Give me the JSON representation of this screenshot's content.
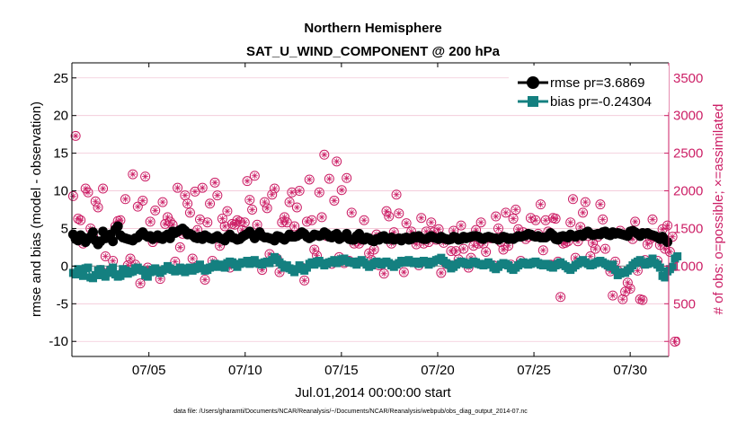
{
  "chart_data": {
    "type": "line",
    "title": "Northern Hemisphere",
    "subtitle": "SAT_U_WIND_COMPONENT @ 200 hPa",
    "xlabel": "Jul.01,2014 00:00:00 start",
    "ylabel_left": "rmse and bias (model - observation)",
    "ylabel_right": "# of obs: o=possible; ×=assimilated",
    "footer": "data file: /Users/gharamti/Documents/NCAR/Reanalysis/~/Documents/NCAR/Reanalysis/webpub/obs_diag_output_2014-07.nc",
    "xlim": [
      1,
      32
    ],
    "ylim_left": [
      -12,
      27
    ],
    "ylim_right": [
      -200,
      3700
    ],
    "y_ticks_left": [
      -10,
      -5,
      0,
      5,
      10,
      15,
      20,
      25
    ],
    "y_ticks_right": [
      0,
      500,
      1000,
      1500,
      2000,
      2500,
      3000,
      3500
    ],
    "x_ticks": [
      5,
      10,
      15,
      20,
      25,
      30
    ],
    "x_tick_labels": [
      "07/05",
      "07/10",
      "07/15",
      "07/20",
      "07/25",
      "07/30"
    ],
    "colors": {
      "rmse": "#000000",
      "bias": "#148080",
      "obs": "#cc1f66",
      "zero_line": "#9a9a9a"
    },
    "series": [
      {
        "name": "rmse",
        "legend": "rmse pr=3.6869",
        "values": [
          4.2,
          3.6,
          3.4,
          4.1,
          3.8,
          3.2,
          3.6,
          3.9,
          4.5,
          3.4,
          2.9,
          3.3,
          4.6,
          3.7,
          3.9,
          4.2,
          3.3,
          4.9,
          5.3,
          4.1,
          3.8,
          3.7,
          3.6,
          3.5,
          3.4,
          3.7,
          3.8,
          4.2,
          4.5,
          4.1,
          3.9,
          4.0,
          3.6,
          3.8,
          4.1,
          3.7,
          3.6,
          4.0,
          4.2,
          3.7,
          4.6,
          4.4,
          4.6,
          4.8,
          5.0,
          4.7,
          4.2,
          4.3,
          4.1,
          3.8,
          3.7,
          3.9,
          3.6,
          4.1,
          3.9,
          3.7,
          3.6,
          3.8,
          4.0,
          3.7,
          3.6,
          3.4,
          3.9,
          4.2,
          3.8,
          3.7,
          3.5,
          3.6,
          3.9,
          4.1,
          4.3,
          4.6,
          4.2,
          3.7,
          4.1,
          4.5,
          4.0,
          3.8,
          3.8,
          3.7,
          3.6,
          3.4,
          4.0,
          3.9,
          3.7,
          3.5,
          3.8,
          4.2,
          3.9,
          3.9,
          4.0,
          4.2,
          4.5,
          4.3,
          3.9,
          3.7,
          3.9,
          4.2,
          4.1,
          4.0,
          4.1,
          4.5,
          4.3,
          3.9,
          3.8,
          4.1,
          4.3,
          3.6,
          3.8,
          3.9,
          4.3,
          3.6,
          3.5,
          3.5,
          4.0,
          4.3,
          3.6,
          3.5,
          3.8,
          3.7,
          3.4,
          3.3,
          3.6,
          3.5,
          3.9,
          4.0,
          3.6,
          3.6,
          3.8,
          3.5,
          3.6,
          3.7,
          3.4,
          3.7,
          3.8,
          3.5,
          3.6,
          3.9,
          3.8,
          4.0,
          3.7,
          3.6,
          3.6,
          3.8,
          4.0,
          3.8,
          3.7,
          3.6,
          3.9,
          3.7,
          3.6,
          3.5,
          3.6,
          3.9,
          3.8,
          3.5,
          3.6,
          3.9,
          3.7,
          3.8,
          3.9,
          4.0,
          4.0,
          3.9,
          3.7,
          3.6,
          3.8,
          3.9,
          3.8,
          3.7,
          3.7,
          3.5,
          3.7,
          3.9,
          3.8,
          3.6,
          3.7,
          3.6,
          3.8,
          4.0,
          3.9,
          4.0,
          4.1,
          4.3,
          4.2,
          4.0,
          3.9,
          4.0,
          3.8,
          3.8,
          3.8,
          4.0,
          4.4,
          4.1,
          3.6,
          3.5,
          3.9,
          4.0,
          3.9,
          3.8,
          4.2,
          4.0,
          3.9,
          4.1,
          4.2,
          4.0,
          4.4,
          4.6,
          4.3,
          4.1,
          4.2,
          4.3,
          4.2,
          4.5,
          4.6,
          4.2,
          4.1,
          4.5,
          4.3,
          4.4,
          4.3,
          4.2,
          4.1,
          4.0,
          4.6,
          4.7,
          4.5,
          4.3,
          4.0,
          4.4,
          4.3,
          4.4,
          4.2,
          4.1,
          4.0,
          3.8,
          3.6,
          3.9,
          3.5,
          3.2
        ]
      },
      {
        "name": "bias",
        "legend": "bias pr=-0.24304",
        "values": [
          -0.9,
          -1.1,
          -0.4,
          -0.8,
          -1.3,
          -0.3,
          -0.2,
          -1.5,
          -1.6,
          -1.2,
          -0.6,
          -0.4,
          -1.2,
          -1.4,
          -0.9,
          -0.5,
          -0.2,
          -1.1,
          -1.4,
          -1.3,
          -0.4,
          -0.6,
          -1.0,
          -0.8,
          -0.7,
          -0.3,
          -0.2,
          -0.5,
          -0.6,
          -1.2,
          -1.4,
          -0.8,
          -0.5,
          -0.3,
          -0.7,
          -0.9,
          -0.6,
          -0.4,
          0.0,
          -0.3,
          -0.5,
          -0.7,
          -0.6,
          -0.2,
          -0.3,
          -0.8,
          -0.5,
          -0.2,
          -0.6,
          -0.4,
          -0.1,
          0.2,
          -0.3,
          -0.6,
          -0.5,
          -0.2,
          -0.1,
          0.3,
          0.1,
          -0.1,
          0.2,
          -0.2,
          0.4,
          0.6,
          0.5,
          0.2,
          -0.1,
          0.3,
          0.5,
          0.4,
          0.7,
          0.3,
          0.6,
          0.8,
          0.4,
          0.3,
          0.2,
          0.5,
          0.6,
          0.4,
          0.8,
          1.2,
          0.9,
          0.5,
          0.2,
          -0.2,
          0.1,
          -0.3,
          -0.5,
          -0.8,
          -0.4,
          0.1,
          -0.3,
          -0.6,
          -0.2,
          0.3,
          0.5,
          0.2,
          0.6,
          0.7,
          0.4,
          0.1,
          0.3,
          0.5,
          0.6,
          0.8,
          0.4,
          0.6,
          0.9,
          1.0,
          0.7,
          0.5,
          0.6,
          0.4,
          0.2,
          0.6,
          0.8,
          0.5,
          0.2,
          -0.1,
          0.1,
          0.4,
          0.6,
          0.3,
          0.2,
          0.5,
          0.6,
          0.4,
          0.1,
          -0.1,
          0.2,
          0.4,
          0.7,
          0.5,
          0.6,
          0.8,
          0.5,
          0.4,
          0.6,
          0.3,
          0.5,
          0.7,
          0.6,
          0.2,
          0.4,
          0.6,
          0.8,
          0.9,
          1.1,
          0.7,
          0.4,
          0.2,
          -0.3,
          -0.1,
          0.2,
          0.4,
          0.6,
          0.5,
          0.3,
          0.2,
          0.4,
          0.6,
          0.5,
          0.3,
          0.2,
          0.1,
          0.3,
          0.5,
          0.2,
          -0.2,
          -0.4,
          -0.1,
          0.2,
          0.4,
          0.3,
          0.1,
          -0.3,
          -0.5,
          -0.2,
          0.1,
          0.3,
          0.5,
          0.4,
          0.2,
          0.3,
          0.5,
          0.6,
          0.4,
          0.2,
          0.1,
          0.3,
          0.2,
          -0.1,
          -0.2,
          0.1,
          0.3,
          0.5,
          0.2,
          0.0,
          -0.3,
          -0.5,
          -0.2,
          0.1,
          0.3,
          0.6,
          0.8,
          0.5,
          0.3,
          0.1,
          0.2,
          0.4,
          0.6,
          0.7,
          0.5,
          0.3,
          0.1,
          -0.1,
          0.2,
          -0.5,
          -1.2,
          -1.0,
          -0.8,
          -0.9,
          -0.6,
          -0.3,
          0.1,
          0.4,
          0.6,
          0.8,
          0.5,
          0.2,
          0.3,
          0.6,
          1.0,
          0.4,
          0.2,
          -0.2,
          -1.3,
          -1.5,
          -0.7,
          -0.4,
          -0.1,
          1.0,
          1.3
        ]
      }
    ],
    "obs_count": {
      "name": "# of obs",
      "values": [
        1930,
        2730,
        1630,
        1610,
        1300,
        2030,
        1980,
        1500,
        1400,
        1860,
        1780,
        950,
        2030,
        1130,
        1380,
        950,
        1070,
        1530,
        1600,
        1610,
        920,
        1890,
        1010,
        1100,
        2220,
        1020,
        1790,
        770,
        1870,
        2190,
        980,
        1590,
        1320,
        1740,
        1370,
        830,
        1850,
        1560,
        1650,
        1590,
        1550,
        1060,
        2040,
        1250,
        1430,
        1940,
        1830,
        1710,
        1100,
        1990,
        1480,
        1620,
        2040,
        820,
        1580,
        1830,
        1070,
        2110,
        1940,
        1270,
        1630,
        1530,
        1730,
        980,
        1560,
        1550,
        1610,
        1590,
        1480,
        1580,
        2130,
        1880,
        1750,
        2200,
        1550,
        1450,
        950,
        1850,
        1770,
        1160,
        1950,
        2030,
        1100,
        920,
        1580,
        1650,
        1580,
        1850,
        1980,
        1530,
        1780,
        2000,
        980,
        810,
        1590,
        2150,
        1610,
        1220,
        1140,
        1980,
        1650,
        2480,
        1400,
        2160,
        1030,
        1870,
        2390,
        1120,
        2010,
        1040,
        2170,
        1070,
        1710,
        1300,
        1050,
        1300,
        1350,
        1610,
        1370,
        1170,
        1080,
        1220,
        1420,
        1010,
        1030,
        900,
        1730,
        1660,
        1300,
        1450,
        1950,
        1700,
        1060,
        920,
        1570,
        1360,
        1460,
        1360,
        1290,
        1010,
        1640,
        1300,
        1460,
        1320,
        1580,
        1450,
        1350,
        1490,
        910,
        1310,
        1030,
        1020,
        1200,
        1470,
        1200,
        1090,
        1540,
        1230,
        1380,
        980,
        1110,
        1270,
        1480,
        1300,
        1580,
        1300,
        1190,
        1380,
        1370,
        1010,
        1660,
        1500,
        1320,
        1220,
        1710,
        1270,
        1020,
        1630,
        1750,
        1490,
        1070,
        1450,
        1360,
        1390,
        1640,
        1400,
        1610,
        1430,
        1820,
        1210,
        1610,
        1460,
        1020,
        1640,
        1630,
        1060,
        590,
        1300,
        1310,
        1330,
        1580,
        1890,
        1110,
        1330,
        1520,
        1710,
        1850,
        1400,
        1130,
        1310,
        1230,
        1390,
        1820,
        1620,
        1230,
        1010,
        930,
        610,
        1060,
        940,
        1470,
        560,
        660,
        780,
        700,
        1360,
        1590,
        940,
        560,
        550,
        1080,
        1290,
        1360,
        1620,
        1390,
        1070,
        1280,
        1490,
        1230,
        1540,
        1190,
        1390,
        -3.0
      ]
    }
  }
}
